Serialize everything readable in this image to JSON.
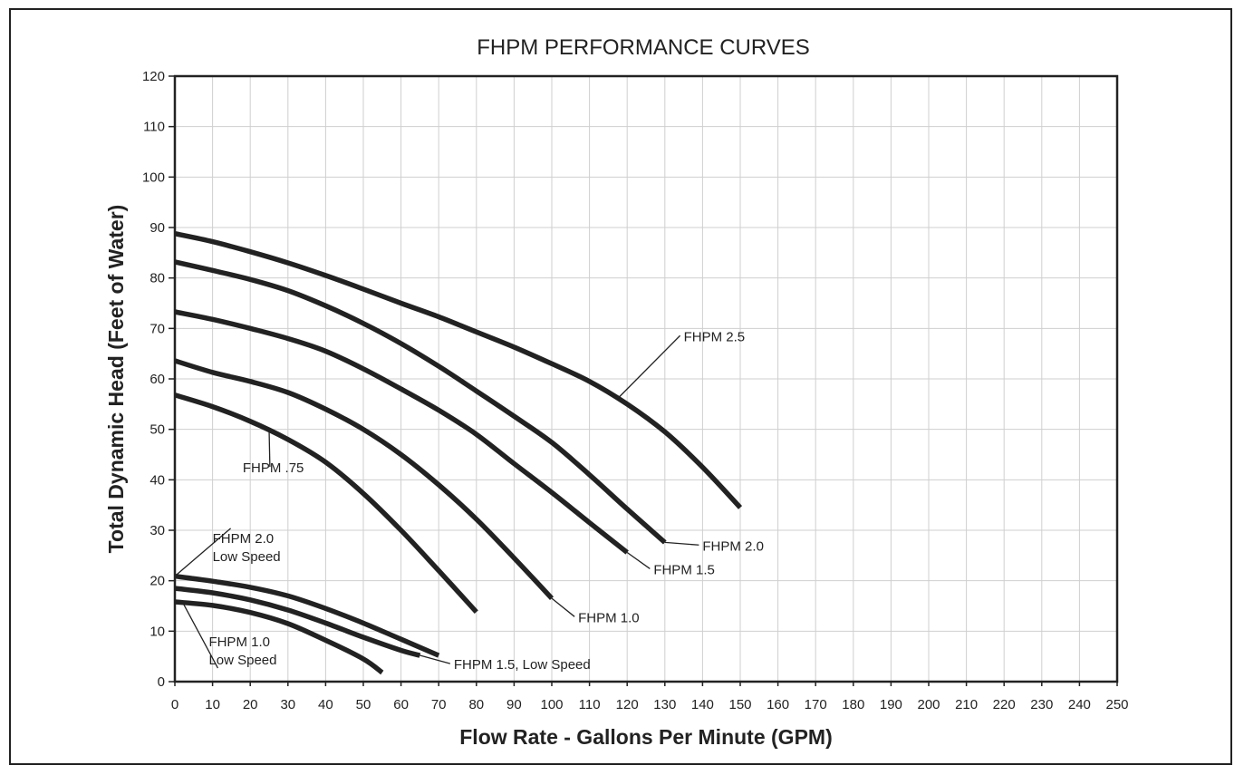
{
  "chart_data": {
    "type": "line",
    "title": "FHPM PERFORMANCE CURVES",
    "xlabel": "Flow Rate - Gallons Per Minute (GPM)",
    "ylabel": "Total Dynamic Head (Feet of Water)",
    "xlim": [
      0,
      250
    ],
    "ylim": [
      0,
      120
    ],
    "xticks": [
      0,
      10,
      20,
      30,
      40,
      50,
      60,
      70,
      80,
      90,
      100,
      110,
      120,
      130,
      140,
      150,
      160,
      170,
      180,
      190,
      200,
      210,
      220,
      230,
      240,
      250
    ],
    "yticks": [
      0,
      10,
      20,
      30,
      40,
      50,
      60,
      70,
      80,
      90,
      100,
      110,
      120
    ],
    "grid": true,
    "series": [
      {
        "name": "FHPM 2.5",
        "x": [
          0,
          10,
          20,
          30,
          40,
          50,
          60,
          70,
          80,
          90,
          100,
          110,
          120,
          130,
          140,
          150
        ],
        "y": [
          88.8,
          87.2,
          85.2,
          83,
          80.5,
          77.8,
          75,
          72.3,
          69.3,
          66.3,
          63,
          59.5,
          55,
          49.5,
          42.5,
          34.5
        ]
      },
      {
        "name": "FHPM 2.0",
        "x": [
          0,
          10,
          20,
          30,
          40,
          50,
          60,
          70,
          80,
          90,
          100,
          110,
          120,
          130
        ],
        "y": [
          83.2,
          81.5,
          79.7,
          77.5,
          74.5,
          71,
          67,
          62.5,
          57.6,
          52.6,
          47.4,
          41,
          34.2,
          27.6
        ]
      },
      {
        "name": "FHPM 1.5",
        "x": [
          0,
          10,
          20,
          30,
          40,
          50,
          60,
          70,
          80,
          90,
          100,
          110,
          120
        ],
        "y": [
          73.3,
          71.8,
          70,
          68,
          65.5,
          62,
          58,
          53.8,
          49,
          43.2,
          37.5,
          31.5,
          25.6
        ]
      },
      {
        "name": "FHPM 1.0",
        "x": [
          0,
          10,
          20,
          30,
          40,
          50,
          60,
          70,
          80,
          90,
          100
        ],
        "y": [
          63.6,
          61.3,
          59.5,
          57.3,
          54,
          50,
          45,
          39,
          32.2,
          24.5,
          16.5
        ]
      },
      {
        "name": "FHPM .75",
        "x": [
          0,
          10,
          20,
          30,
          40,
          50,
          60,
          70,
          80
        ],
        "y": [
          56.8,
          54.5,
          51.6,
          48,
          43.5,
          37.3,
          30,
          22,
          13.8
        ]
      },
      {
        "name": "FHPM 2.0 Low Speed",
        "x": [
          0,
          10,
          20,
          30,
          40,
          50,
          60,
          70
        ],
        "y": [
          20.9,
          19.9,
          18.7,
          17,
          14.5,
          11.6,
          8.4,
          5.2
        ]
      },
      {
        "name": "FHPM 1.5, Low Speed",
        "x": [
          0,
          10,
          20,
          30,
          40,
          50,
          60,
          65
        ],
        "y": [
          18.5,
          17.6,
          16.2,
          14.2,
          11.6,
          8.8,
          6.2,
          5.2
        ]
      },
      {
        "name": "FHPM 1.0 Low Speed",
        "x": [
          0,
          10,
          20,
          30,
          40,
          50,
          55
        ],
        "y": [
          15.8,
          15.1,
          13.7,
          11.5,
          8.2,
          4.5,
          1.8
        ]
      }
    ],
    "annotations": [
      {
        "series": "FHPM 2.5",
        "lines": [
          "FHPM 2.5"
        ],
        "point": [
          118,
          56.5
        ],
        "text_at": [
          135,
          67.5
        ]
      },
      {
        "series": "FHPM 2.0",
        "lines": [
          "FHPM 2.0"
        ],
        "point": [
          130,
          27.6
        ],
        "text_at": [
          140,
          26
        ]
      },
      {
        "series": "FHPM 1.5",
        "lines": [
          "FHPM 1.5"
        ],
        "point": [
          120,
          25.6
        ],
        "text_at": [
          127,
          21.3
        ]
      },
      {
        "series": "FHPM 1.0",
        "lines": [
          "FHPM 1.0"
        ],
        "point": [
          100,
          16.5
        ],
        "text_at": [
          107,
          11.8
        ]
      },
      {
        "series": "FHPM .75",
        "lines": [
          "FHPM .75"
        ],
        "point": [
          25,
          50
        ],
        "text_at": [
          18,
          41.5
        ]
      },
      {
        "series": "FHPM 2.0 Low Speed",
        "lines": [
          "FHPM 2.0",
          "Low Speed"
        ],
        "point": [
          0,
          20.9
        ],
        "text_at": [
          10,
          27.5
        ]
      },
      {
        "series": "FHPM 1.5, Low Speed",
        "lines": [
          "FHPM 1.5, Low Speed"
        ],
        "point": [
          65,
          5.2
        ],
        "text_at": [
          74,
          2.5
        ]
      },
      {
        "series": "FHPM 1.0 Low Speed",
        "lines": [
          "FHPM 1.0",
          "Low Speed"
        ],
        "point": [
          2,
          15.8
        ],
        "text_at": [
          9,
          7
        ]
      }
    ]
  }
}
